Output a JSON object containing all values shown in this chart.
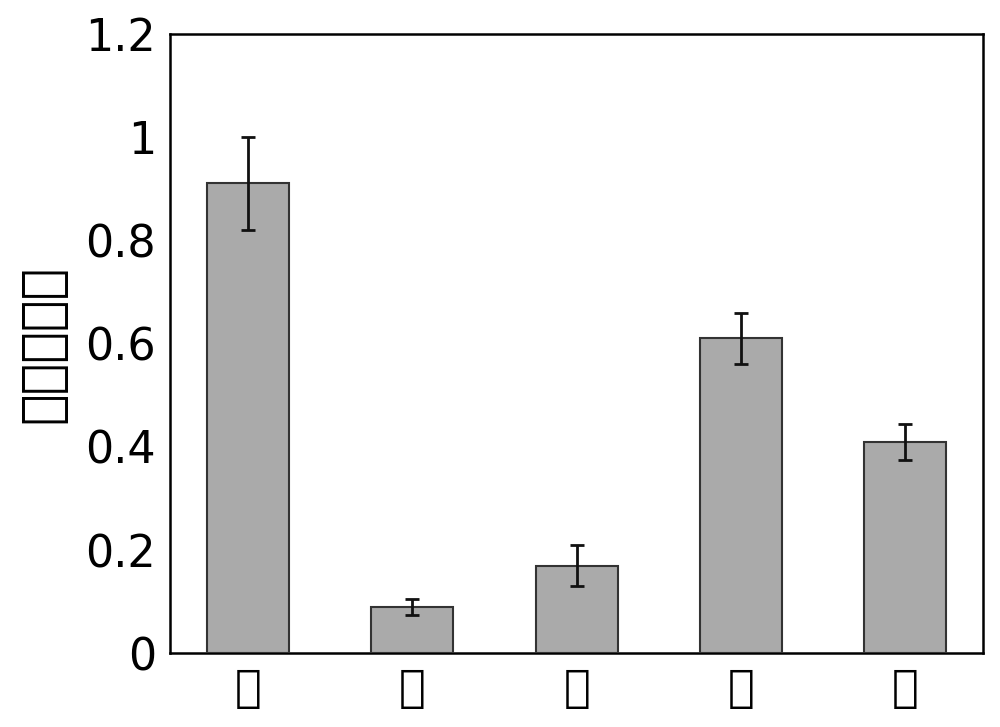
{
  "categories": [
    "根",
    "茎",
    "叶",
    "花",
    "果"
  ],
  "values": [
    0.91,
    0.09,
    0.17,
    0.61,
    0.41
  ],
  "errors": [
    0.09,
    0.015,
    0.04,
    0.05,
    0.035
  ],
  "bar_color": "#aaaaaa",
  "bar_edgecolor": "#333333",
  "ylabel": "相对表达量",
  "ylim": [
    0,
    1.2
  ],
  "yticks": [
    0,
    0.2,
    0.4,
    0.6,
    0.8,
    1.0,
    1.2
  ],
  "bar_width": 0.5,
  "background_color": "#ffffff",
  "ylabel_fontsize": 38,
  "tick_fontsize": 32,
  "ecolor": "#111111",
  "capsize": 5,
  "elinewidth": 2,
  "capthick": 2
}
